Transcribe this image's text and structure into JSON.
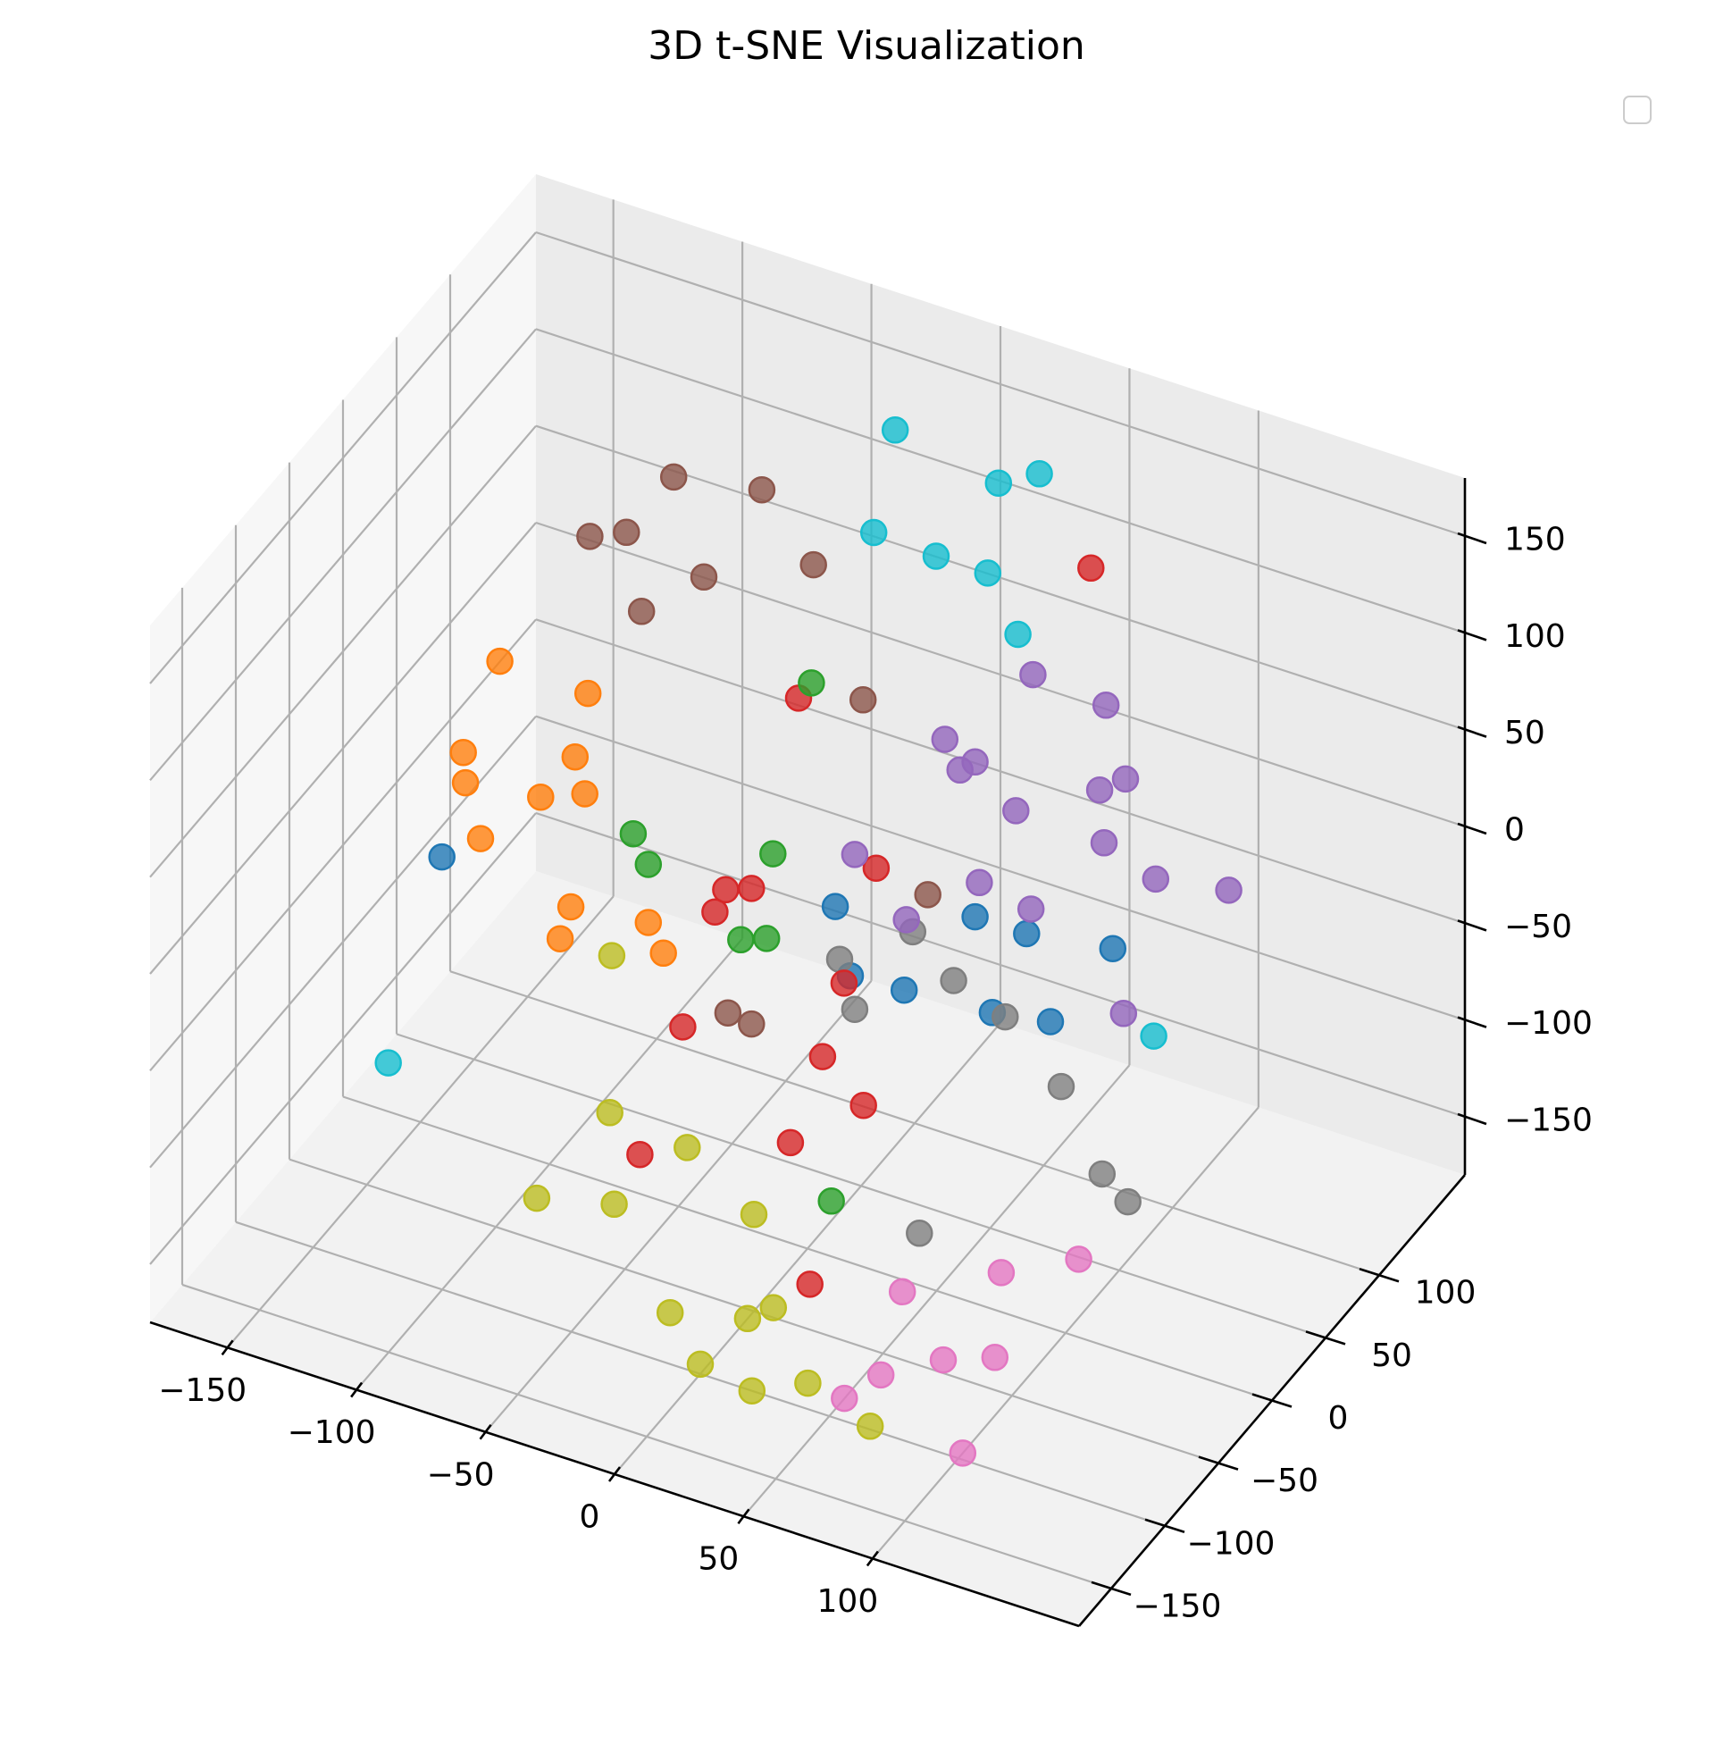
{
  "chart_data": {
    "type": "scatter",
    "projection": "3d",
    "title": "3D t-SNE Visualization",
    "xlabel": "",
    "ylabel": "",
    "zlabel": "",
    "grid": true,
    "legend": {
      "visible": true,
      "placement": "upper-right",
      "entries": []
    },
    "axes": {
      "x": {
        "ticks": [
          -150,
          -100,
          -50,
          0,
          50,
          100
        ],
        "tick_labels": [
          "−150",
          "−100",
          "−50",
          "0",
          "50",
          "100"
        ]
      },
      "y": {
        "ticks": [
          -150,
          -100,
          -50,
          0,
          50,
          100
        ],
        "tick_labels": [
          "−150",
          "−100",
          "−50",
          "0",
          "50",
          "100"
        ]
      },
      "z": {
        "ticks": [
          -150,
          -100,
          -50,
          0,
          50,
          100,
          150
        ],
        "tick_labels": [
          "−150",
          "−100",
          "−50",
          "0",
          "50",
          "100",
          "150"
        ]
      }
    },
    "series": [
      {
        "color": "#1f77b4",
        "points": [
          [
            -150,
            20,
            -56
          ],
          [
            110,
            20,
            10
          ],
          [
            60,
            60,
            -30
          ],
          [
            55,
            40,
            -60
          ],
          [
            25,
            30,
            -55
          ],
          [
            0,
            40,
            -65
          ],
          [
            -10,
            50,
            -40
          ],
          [
            40,
            60,
            -30
          ],
          [
            90,
            10,
            -30
          ]
        ]
      },
      {
        "color": "#ff7f0e",
        "points": [
          [
            -140,
            50,
            30
          ],
          [
            -110,
            60,
            20
          ],
          [
            -150,
            40,
            -15
          ],
          [
            -145,
            30,
            -22
          ],
          [
            -120,
            40,
            -25
          ],
          [
            -105,
            45,
            -20
          ],
          [
            -115,
            60,
            -15
          ],
          [
            -135,
            20,
            -40
          ],
          [
            -100,
            20,
            -60
          ],
          [
            -100,
            10,
            -70
          ],
          [
            -70,
            20,
            -55
          ],
          [
            -60,
            10,
            -60
          ]
        ]
      },
      {
        "color": "#2ca02c",
        "points": [
          [
            -40,
            100,
            30
          ],
          [
            -80,
            30,
            -20
          ],
          [
            -70,
            20,
            -25
          ],
          [
            -30,
            40,
            -15
          ],
          [
            -30,
            10,
            -40
          ],
          [
            -20,
            10,
            -35
          ],
          [
            30,
            -50,
            -110
          ]
        ]
      },
      {
        "color": "#d62728",
        "points": [
          [
            60,
            120,
            120
          ],
          [
            -45,
            100,
            20
          ],
          [
            10,
            40,
            -5
          ],
          [
            -30,
            20,
            -20
          ],
          [
            -40,
            20,
            -25
          ],
          [
            -40,
            10,
            -30
          ],
          [
            10,
            10,
            -45
          ],
          [
            10,
            -10,
            -70
          ],
          [
            -40,
            -20,
            -70
          ],
          [
            30,
            -20,
            -80
          ],
          [
            10,
            -40,
            -95
          ],
          [
            -40,
            -60,
            -110
          ],
          [
            30,
            -70,
            -140
          ]
        ]
      },
      {
        "color": "#9467bd",
        "points": [
          [
            50,
            90,
            80
          ],
          [
            70,
            110,
            60
          ],
          [
            90,
            80,
            50
          ],
          [
            20,
            80,
            40
          ],
          [
            30,
            70,
            35
          ],
          [
            40,
            60,
            50
          ],
          [
            60,
            50,
            40
          ],
          [
            80,
            80,
            40
          ],
          [
            90,
            60,
            30
          ],
          [
            110,
            60,
            20
          ],
          [
            130,
            80,
            10
          ],
          [
            10,
            20,
            15
          ],
          [
            50,
            40,
            5
          ],
          [
            70,
            40,
            0
          ],
          [
            30,
            20,
            -10
          ],
          [
            110,
            30,
            -30
          ]
        ]
      },
      {
        "color": "#8c564b",
        "points": [
          [
            -110,
            140,
            80
          ],
          [
            -80,
            150,
            80
          ],
          [
            -130,
            110,
            60
          ],
          [
            -120,
            120,
            60
          ],
          [
            -90,
            120,
            50
          ],
          [
            -60,
            150,
            50
          ],
          [
            -20,
            100,
            30
          ],
          [
            -110,
            110,
            30
          ],
          [
            30,
            40,
            -10
          ],
          [
            -35,
            10,
            -80
          ],
          [
            -30,
            20,
            -90
          ]
        ]
      },
      {
        "color": "#e377c2",
        "points": [
          [
            130,
            -60,
            -90
          ],
          [
            100,
            -60,
            -110
          ],
          [
            70,
            -80,
            -120
          ],
          [
            110,
            -90,
            -130
          ],
          [
            90,
            -90,
            -140
          ],
          [
            70,
            -100,
            -150
          ],
          [
            110,
            -120,
            -160
          ],
          [
            60,
            -110,
            -160
          ]
        ]
      },
      {
        "color": "#7f7f7f",
        "points": [
          [
            20,
            50,
            -40
          ],
          [
            0,
            30,
            -50
          ],
          [
            40,
            40,
            -50
          ],
          [
            60,
            40,
            -60
          ],
          [
            10,
            20,
            -65
          ],
          [
            90,
            20,
            -70
          ],
          [
            110,
            10,
            -100
          ],
          [
            120,
            10,
            -110
          ],
          [
            60,
            -40,
            -120
          ]
        ]
      },
      {
        "color": "#bcbd22",
        "points": [
          [
            -80,
            10,
            -70
          ],
          [
            -60,
            -40,
            -110
          ],
          [
            -30,
            -40,
            -115
          ],
          [
            0,
            -50,
            -130
          ],
          [
            -50,
            -60,
            -140
          ],
          [
            -80,
            -60,
            -150
          ],
          [
            20,
            -80,
            -150
          ],
          [
            10,
            -80,
            -160
          ],
          [
            -20,
            -80,
            -170
          ],
          [
            0,
            -100,
            -175
          ],
          [
            20,
            -100,
            -180
          ],
          [
            50,
            -120,
            -150
          ],
          [
            70,
            -110,
            -170
          ]
        ]
      },
      {
        "color": "#17becf",
        "points": [
          [
            -20,
            130,
            150
          ],
          [
            20,
            130,
            140
          ],
          [
            40,
            120,
            160
          ],
          [
            -20,
            110,
            110
          ],
          [
            0,
            120,
            100
          ],
          [
            20,
            120,
            100
          ],
          [
            40,
            100,
            90
          ],
          [
            -150,
            -30,
            -130
          ],
          [
            130,
            10,
            -20
          ]
        ]
      }
    ]
  }
}
